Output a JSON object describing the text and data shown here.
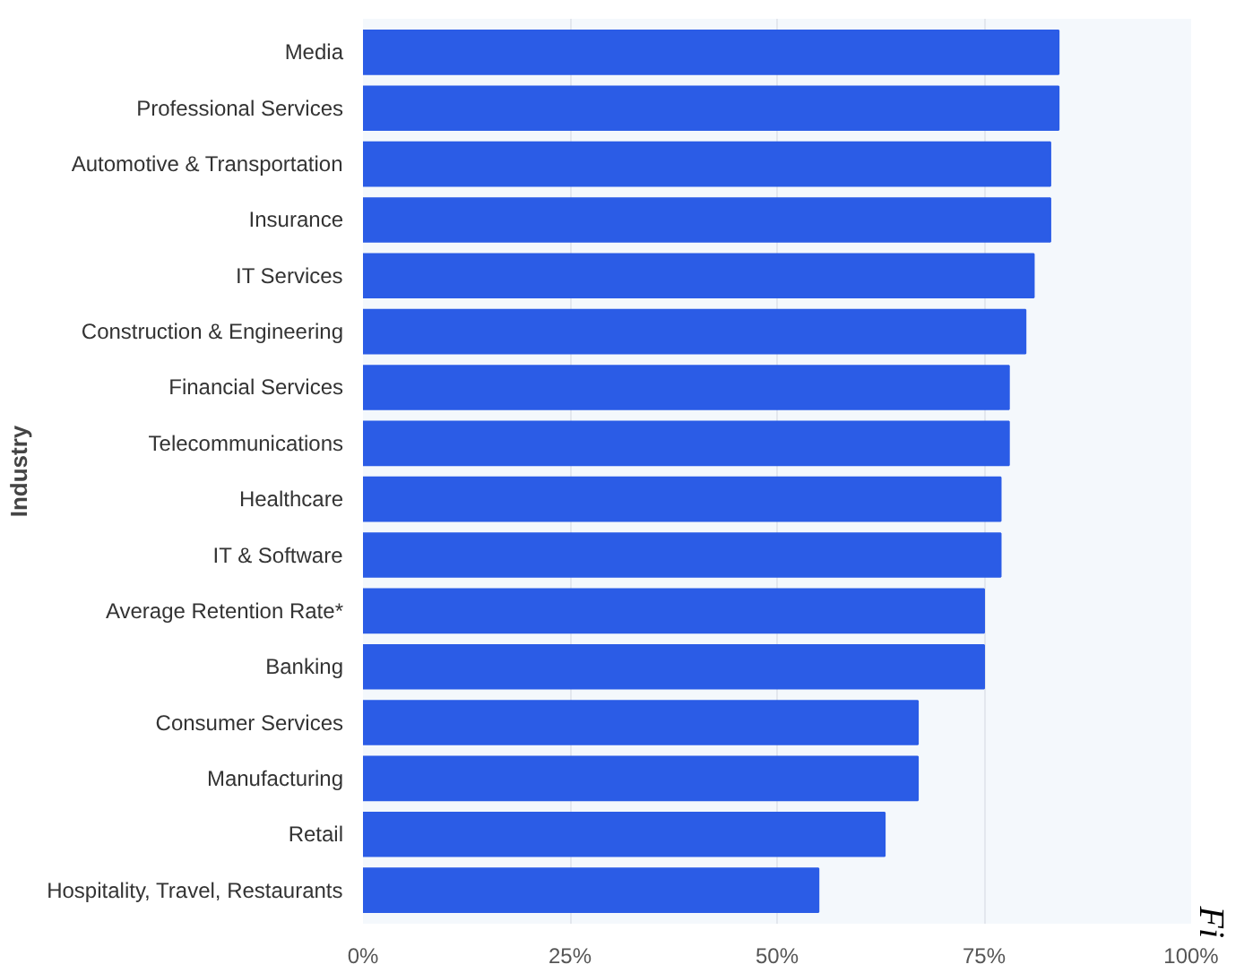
{
  "chart_data": {
    "type": "bar",
    "orientation": "horizontal",
    "ylabel": "Industry",
    "categories": [
      "Media",
      "Professional Services",
      "Automotive & Transportation",
      "Insurance",
      "IT Services",
      "Construction & Engineering",
      "Financial Services",
      "Telecommunications",
      "Healthcare",
      "IT & Software",
      "Average Retention Rate*",
      "Banking",
      "Consumer Services",
      "Manufacturing",
      "Retail",
      "Hospitality, Travel, Restaurants"
    ],
    "values": [
      84,
      84,
      83,
      83,
      81,
      80,
      78,
      78,
      77,
      77,
      75,
      75,
      67,
      67,
      63,
      55
    ],
    "color": "#2b5ce6",
    "xlim": [
      0,
      100
    ],
    "xticks": [
      {
        "value": 0,
        "label": "0%"
      },
      {
        "value": 25,
        "label": "25%"
      },
      {
        "value": 50,
        "label": "50%"
      },
      {
        "value": 75,
        "label": "75%"
      },
      {
        "value": 100,
        "label": "100%"
      }
    ],
    "grid": "x",
    "annotations": [
      "Fi"
    ]
  }
}
